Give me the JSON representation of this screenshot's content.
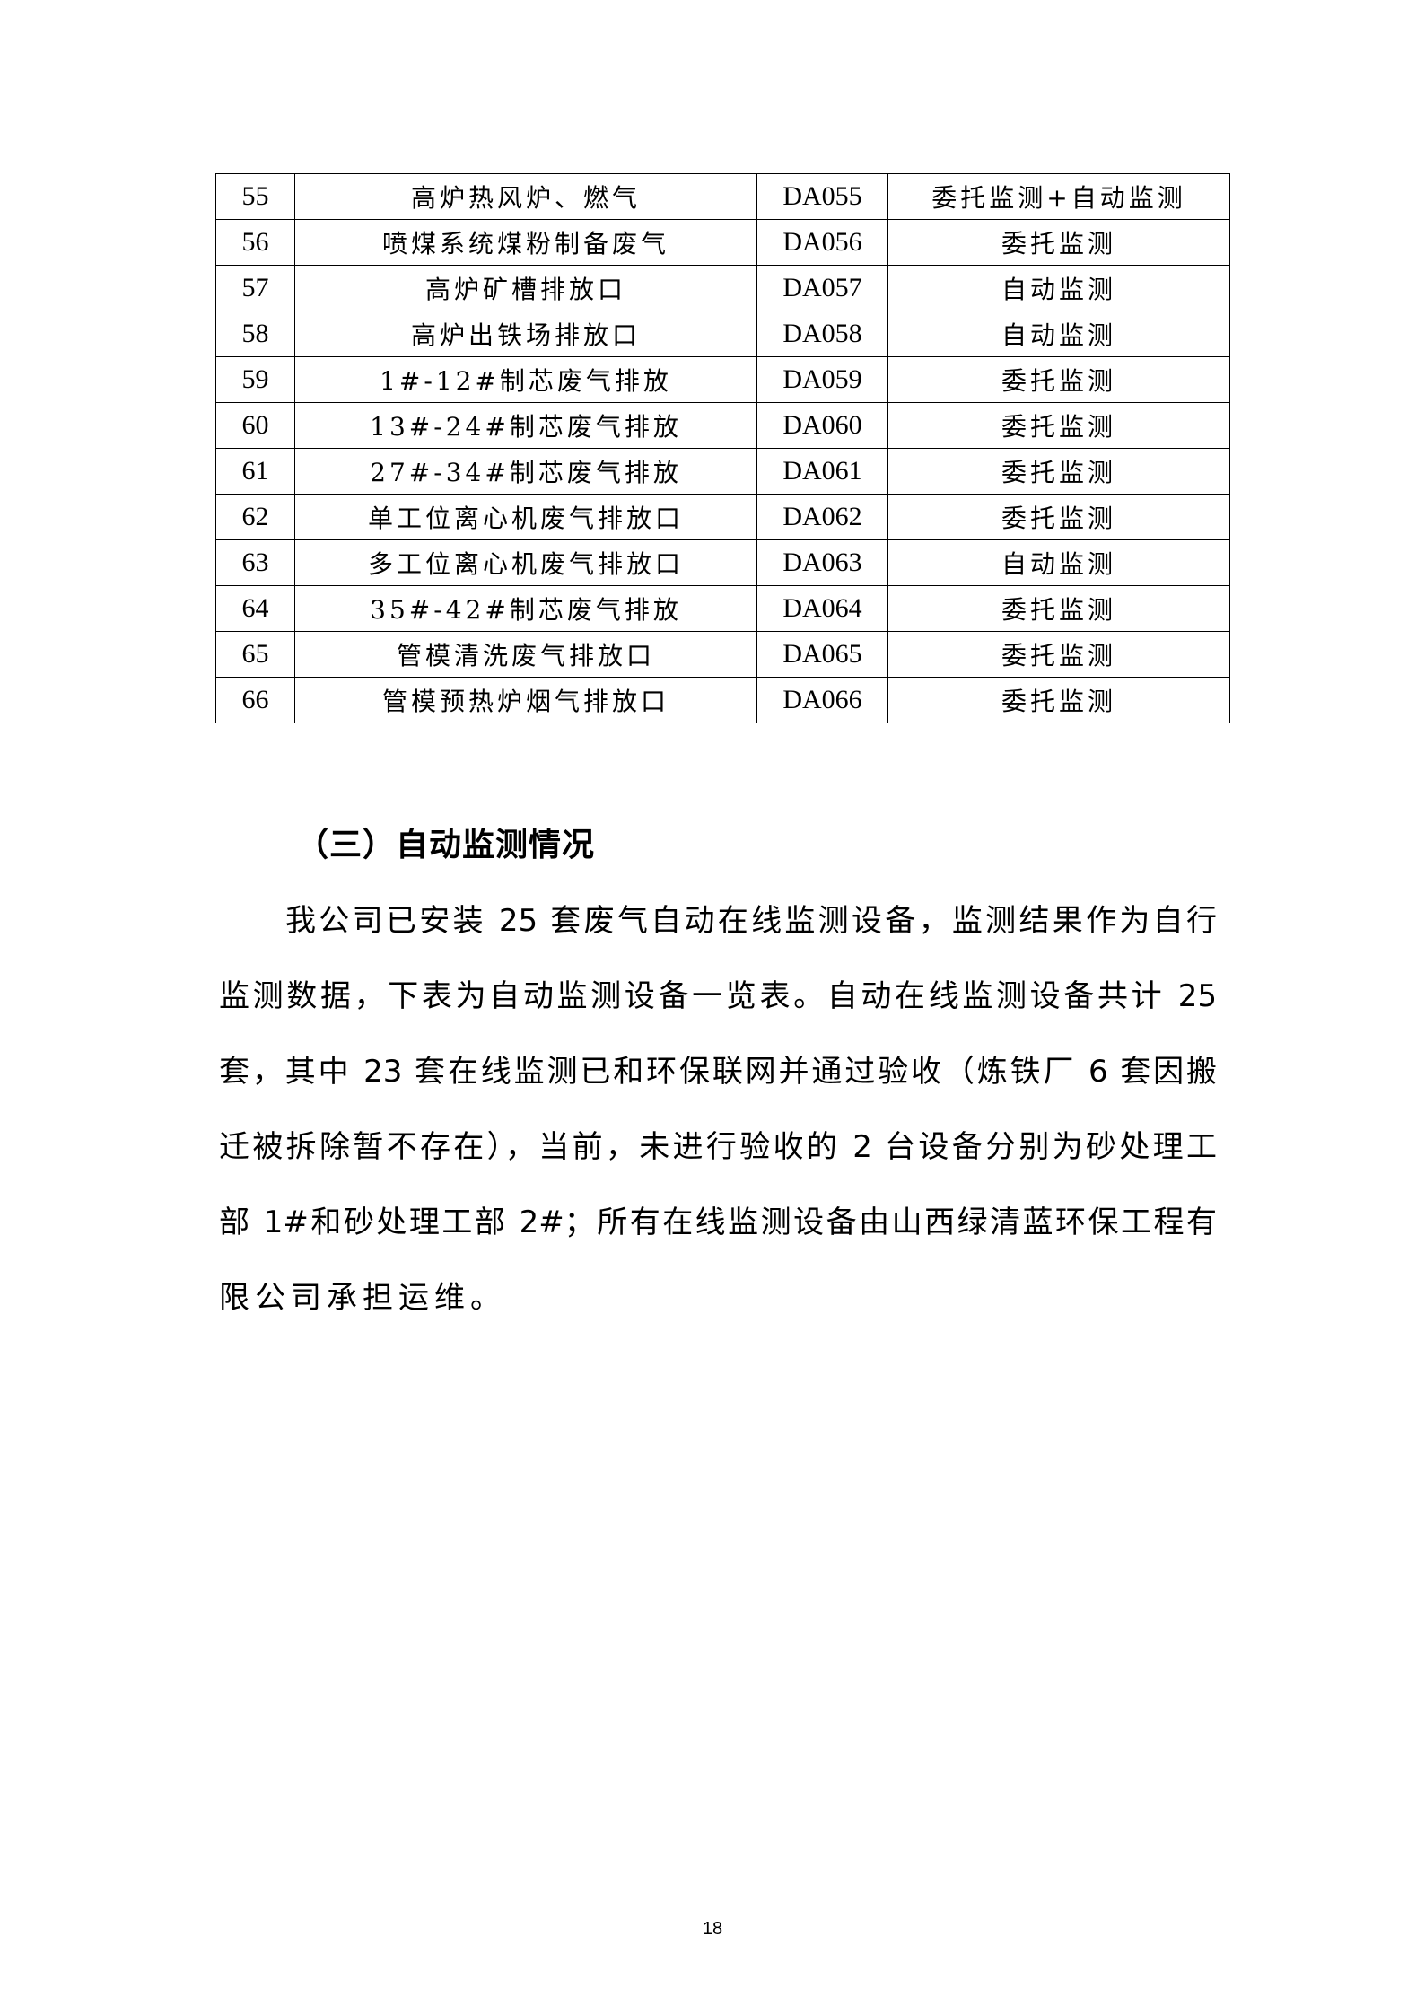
{
  "table": {
    "rows": [
      [
        "55",
        "高炉热风炉、燃气",
        "DA055",
        "委托监测+自动监测"
      ],
      [
        "56",
        "喷煤系统煤粉制备废气",
        "DA056",
        "委托监测"
      ],
      [
        "57",
        "高炉矿槽排放口",
        "DA057",
        "自动监测"
      ],
      [
        "58",
        "高炉出铁场排放口",
        "DA058",
        "自动监测"
      ],
      [
        "59",
        "1#-12#制芯废气排放",
        "DA059",
        "委托监测"
      ],
      [
        "60",
        "13#-24#制芯废气排放",
        "DA060",
        "委托监测"
      ],
      [
        "61",
        "27#-34#制芯废气排放",
        "DA061",
        "委托监测"
      ],
      [
        "62",
        "单工位离心机废气排放口",
        "DA062",
        "委托监测"
      ],
      [
        "63",
        "多工位离心机废气排放口",
        "DA063",
        "自动监测"
      ],
      [
        "64",
        "35#-42#制芯废气排放",
        "DA064",
        "委托监测"
      ],
      [
        "65",
        "管模清洗废气排放口",
        "DA065",
        "委托监测"
      ],
      [
        "66",
        "管模预热炉烟气排放口",
        "DA066",
        "委托监测"
      ]
    ]
  },
  "section": {
    "heading": "（三）自动监测情况",
    "lines": [
      "我公司已安装 25 套废气自动在线监测设备，监测结果作为自行",
      "监测数据，下表为自动监测设备一览表。自动在线监测设备共计 25",
      "套，其中 23 套在线监测已和环保联网并通过验收（炼铁厂 6 套因搬",
      "迁被拆除暂不存在），当前，未进行验收的 2 台设备分别为砂处理工",
      "部 1#和砂处理工部 2#；所有在线监测设备由山西绿清蓝环保工程有",
      "限公司承担运维。"
    ]
  },
  "page_number": "18"
}
